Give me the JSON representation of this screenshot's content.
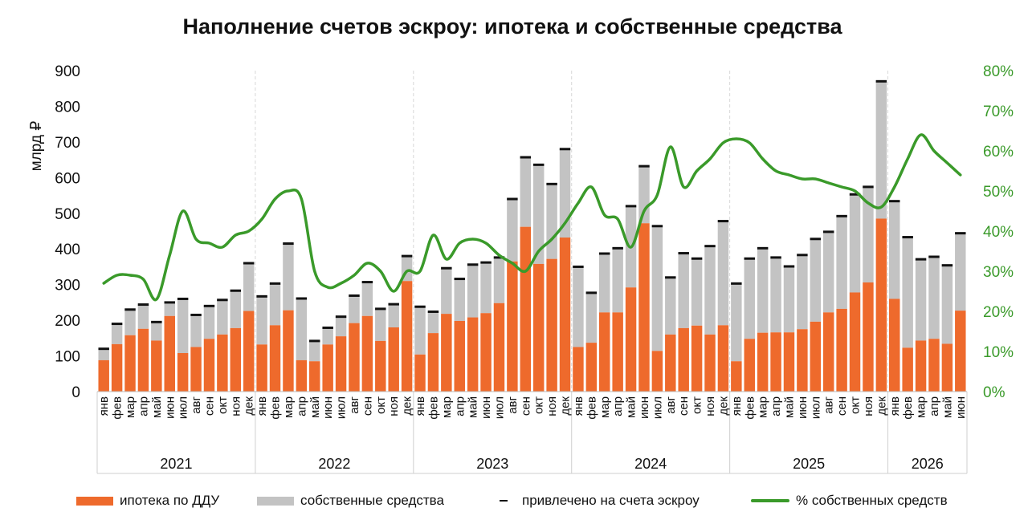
{
  "chart_data": {
    "type": "bar",
    "title": "Наполнение счетов эскроу: ипотека и собственные средства",
    "ylabel": "млрд ₽",
    "ylim": [
      0,
      900
    ],
    "yticks": [
      "0",
      "100",
      "200",
      "300",
      "400",
      "500",
      "600",
      "700",
      "800",
      "900"
    ],
    "y2lim": [
      0,
      0.8
    ],
    "y2ticks": [
      "0%",
      "10%",
      "20%",
      "30%",
      "40%",
      "50%",
      "60%",
      "70%",
      "80%"
    ],
    "grid": false,
    "legend_position": "bottom",
    "colors": {
      "mortgage": "#ee6a2c",
      "own": "#c3c3c3",
      "total_marker": "#111111",
      "share_line": "#3a9a2a"
    },
    "categories": [
      "янв",
      "фев",
      "мар",
      "апр",
      "май",
      "июн",
      "июл",
      "авг",
      "сен",
      "окт",
      "ноя",
      "дек",
      "янв",
      "фев",
      "мар",
      "апр",
      "май",
      "июн",
      "июл",
      "авг",
      "сен",
      "окт",
      "ноя",
      "дек",
      "янв",
      "фев",
      "мар",
      "апр",
      "май",
      "июн",
      "июл",
      "авг",
      "сен",
      "окт",
      "ноя",
      "дек",
      "янв",
      "фев",
      "мар",
      "апр",
      "май",
      "июн",
      "июл",
      "авг",
      "сен",
      "окт",
      "ноя",
      "дек",
      "янв",
      "фев",
      "мар",
      "апр",
      "май",
      "июн",
      "июл",
      "авг",
      "сен",
      "окт",
      "ноя",
      "дек",
      "янв",
      "фев",
      "мар",
      "апр",
      "май",
      "июн"
    ],
    "years": [
      {
        "label": "2021",
        "months": 12
      },
      {
        "label": "2022",
        "months": 12
      },
      {
        "label": "2023",
        "months": 12
      },
      {
        "label": "2024",
        "months": 12
      },
      {
        "label": "2025",
        "months": 12
      },
      {
        "label": "2026",
        "months": 6
      }
    ],
    "series": [
      {
        "name": "ипотека по ДДУ",
        "type": "bar",
        "values": [
          88,
          133,
          158,
          176,
          143,
          212,
          108,
          125,
          148,
          160,
          178,
          226,
          132,
          186,
          228,
          88,
          85,
          132,
          155,
          192,
          212,
          142,
          180,
          310,
          104,
          164,
          218,
          198,
          208,
          220,
          248,
          365,
          462,
          358,
          372,
          432,
          125,
          137,
          222,
          222,
          292,
          472,
          114,
          160,
          178,
          185,
          160,
          186,
          85,
          148,
          165,
          166,
          166,
          175,
          196,
          222,
          232,
          278,
          306,
          485,
          260,
          123,
          143,
          148,
          134,
          227
        ]
      },
      {
        "name": "собственные средства",
        "type": "bar",
        "values": [
          32,
          57,
          72,
          68,
          52,
          38,
          152,
          90,
          92,
          97,
          105,
          134,
          135,
          117,
          187,
          173,
          57,
          47,
          55,
          77,
          95,
          90,
          65,
          70,
          134,
          60,
          128,
          118,
          148,
          142,
          128,
          175,
          195,
          278,
          210,
          248,
          225,
          140,
          165,
          180,
          228,
          160,
          350,
          160,
          210,
          188,
          248,
          292,
          218,
          225,
          237,
          210,
          185,
          208,
          232,
          226,
          260,
          275,
          268,
          385,
          274,
          310,
          228,
          230,
          220,
          217
        ]
      },
      {
        "name": "привлечено на счета эскроу",
        "type": "marker",
        "values": [
          120,
          190,
          230,
          244,
          195,
          250,
          260,
          215,
          240,
          257,
          283,
          360,
          267,
          303,
          415,
          261,
          142,
          179,
          210,
          269,
          307,
          232,
          245,
          380,
          238,
          224,
          346,
          316,
          356,
          362,
          376,
          540,
          657,
          636,
          582,
          680,
          350,
          277,
          387,
          402,
          520,
          632,
          464,
          320,
          388,
          373,
          408,
          478,
          303,
          373,
          402,
          376,
          351,
          383,
          428,
          448,
          492,
          553,
          574,
          870,
          534,
          433,
          371,
          378,
          354,
          444
        ]
      },
      {
        "name": "% собственных средств",
        "type": "line",
        "axis": "right",
        "values": [
          0.27,
          0.29,
          0.29,
          0.28,
          0.23,
          0.34,
          0.45,
          0.38,
          0.37,
          0.36,
          0.39,
          0.4,
          0.43,
          0.48,
          0.5,
          0.48,
          0.3,
          0.26,
          0.27,
          0.29,
          0.32,
          0.3,
          0.25,
          0.3,
          0.3,
          0.39,
          0.33,
          0.37,
          0.38,
          0.37,
          0.34,
          0.32,
          0.3,
          0.35,
          0.38,
          0.42,
          0.47,
          0.51,
          0.44,
          0.43,
          0.36,
          0.45,
          0.49,
          0.61,
          0.51,
          0.55,
          0.58,
          0.62,
          0.63,
          0.62,
          0.58,
          0.55,
          0.54,
          0.53,
          0.53,
          0.52,
          0.51,
          0.5,
          0.47,
          0.46,
          0.51,
          0.58,
          0.64,
          0.6,
          0.57,
          0.54
        ]
      }
    ]
  },
  "legend": [
    {
      "key": "mortgage",
      "label": "ипотека по ДДУ"
    },
    {
      "key": "own",
      "label": "собственные средства"
    },
    {
      "key": "total",
      "label": "привлечено на счета эскроу"
    },
    {
      "key": "share",
      "label": "% собственных средств"
    }
  ]
}
